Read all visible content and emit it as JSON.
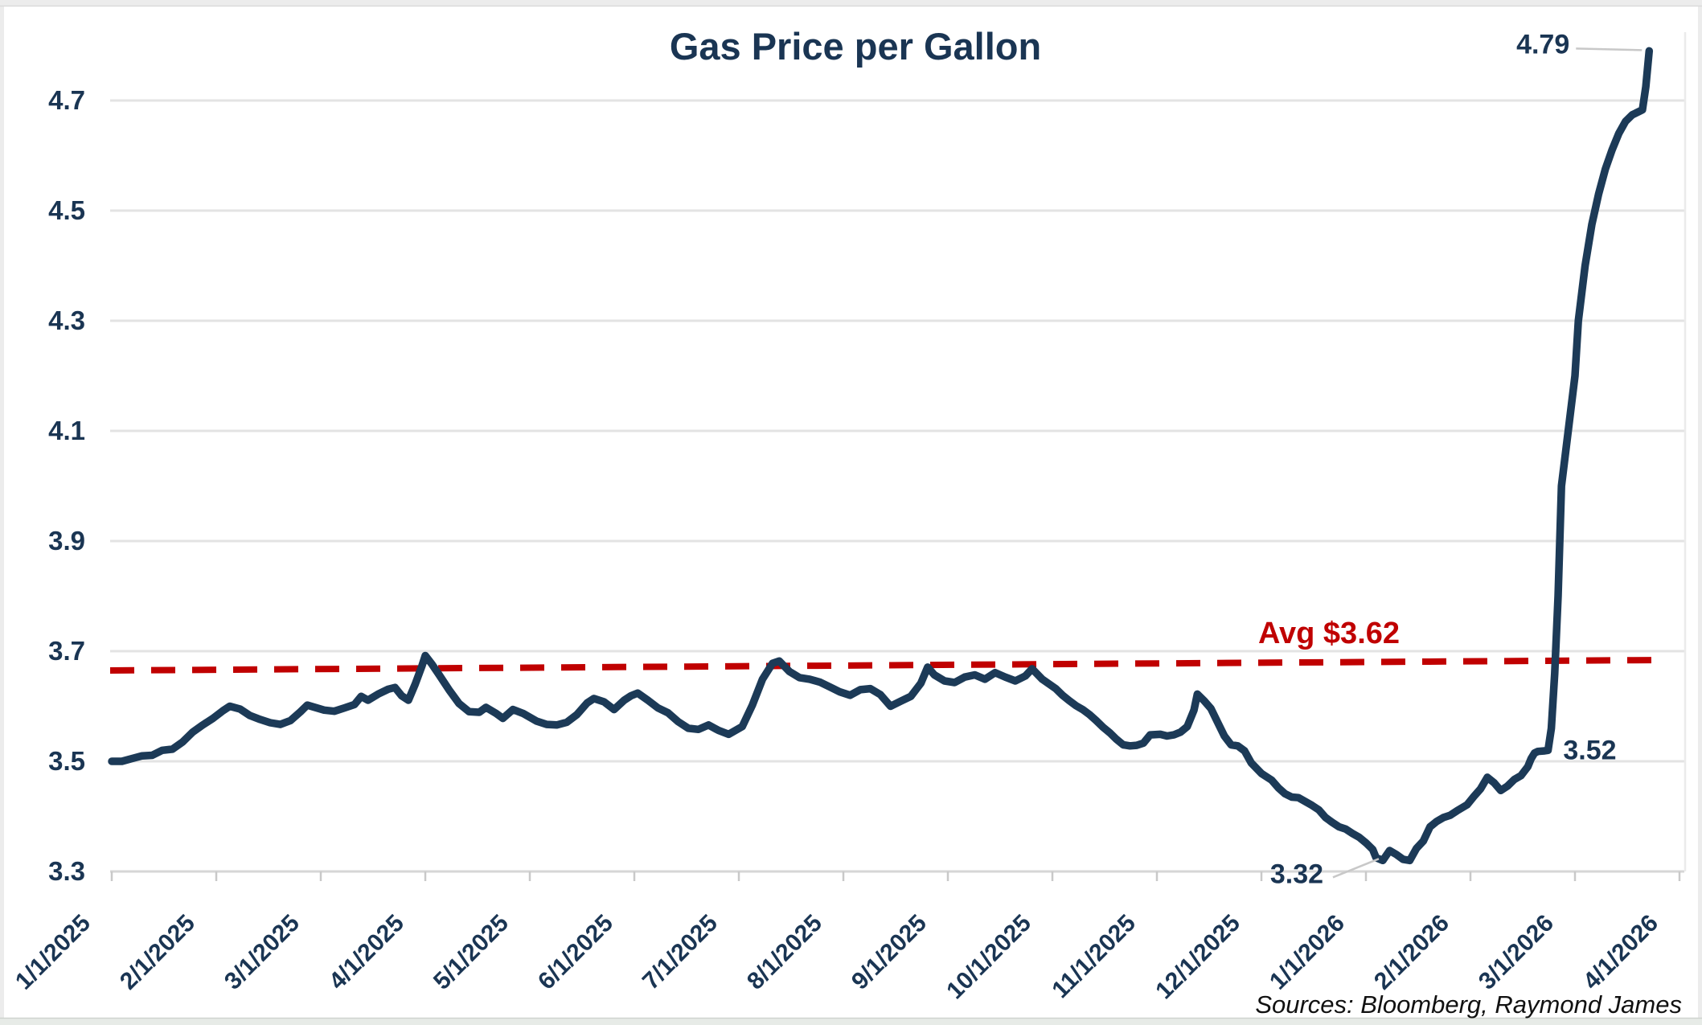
{
  "window": {
    "background": "#ededed",
    "canvas": "#ffffff",
    "frame_color": "#ececec",
    "bottom_strip_color": "#e7ebe7"
  },
  "chart_data": {
    "type": "line",
    "title": "Gas Price per Gallon",
    "source_note": "Sources: Bloomberg, Raymond James",
    "legend": "none",
    "grid": "horizontal",
    "colors": {
      "line": "#1c3a57",
      "text": "#1a3553",
      "avg": "#c00000",
      "grid": "#e3e3e3",
      "axis": "#d6d6d6",
      "tick": "#c9c9c9",
      "leader": "#c8c8c8"
    },
    "y_axis": {
      "min": 3.3,
      "max": 4.8,
      "tick_step": 0.2,
      "ticks": [
        3.3,
        3.5,
        3.7,
        3.9,
        4.1,
        4.3,
        4.5,
        4.7
      ],
      "tick_labels": [
        "3.3",
        "3.5",
        "3.7",
        "3.9",
        "4.1",
        "4.3",
        "4.5",
        "4.7"
      ]
    },
    "x_axis": {
      "tick_labels": [
        "1/1/2025",
        "2/1/2025",
        "3/1/2025",
        "4/1/2025",
        "5/1/2025",
        "6/1/2025",
        "7/1/2025",
        "8/1/2025",
        "9/1/2025",
        "10/1/2025",
        "11/1/2025",
        "12/1/2025",
        "1/1/2026",
        "2/1/2026",
        "3/1/2026",
        "4/1/2026"
      ]
    },
    "avg_line": {
      "label": "Avg $3.62",
      "value": 3.62,
      "draw_start_value": 3.665,
      "draw_end_value": 3.684,
      "style": "dashed"
    },
    "annotations": [
      {
        "text": "4.79",
        "date": "2026-03-23",
        "value": 4.79
      },
      {
        "text": "3.52",
        "date": "2026-02-24",
        "value": 3.52
      },
      {
        "text": "3.32",
        "date": "2026-01-06",
        "value": 3.32
      }
    ],
    "series": [
      {
        "name": "Gas Price per Gallon",
        "points": [
          [
            "2025-01-01",
            3.5
          ],
          [
            "2025-01-04",
            3.5
          ],
          [
            "2025-01-07",
            3.505
          ],
          [
            "2025-01-10",
            3.51
          ],
          [
            "2025-01-13",
            3.511
          ],
          [
            "2025-01-16",
            3.52
          ],
          [
            "2025-01-19",
            3.522
          ],
          [
            "2025-01-22",
            3.535
          ],
          [
            "2025-01-25",
            3.553
          ],
          [
            "2025-01-28",
            3.566
          ],
          [
            "2025-01-31",
            3.578
          ],
          [
            "2025-02-03",
            3.592
          ],
          [
            "2025-02-05",
            3.6
          ],
          [
            "2025-02-08",
            3.595
          ],
          [
            "2025-02-11",
            3.583
          ],
          [
            "2025-02-14",
            3.576
          ],
          [
            "2025-02-17",
            3.57
          ],
          [
            "2025-02-20",
            3.567
          ],
          [
            "2025-02-23",
            3.574
          ],
          [
            "2025-02-26",
            3.59
          ],
          [
            "2025-02-28",
            3.602
          ],
          [
            "2025-03-02",
            3.593
          ],
          [
            "2025-03-05",
            3.591
          ],
          [
            "2025-03-08",
            3.597
          ],
          [
            "2025-03-11",
            3.603
          ],
          [
            "2025-03-13",
            3.618
          ],
          [
            "2025-03-15",
            3.611
          ],
          [
            "2025-03-18",
            3.622
          ],
          [
            "2025-03-21",
            3.631
          ],
          [
            "2025-03-23",
            3.634
          ],
          [
            "2025-03-25",
            3.619
          ],
          [
            "2025-03-27",
            3.611
          ],
          [
            "2025-03-29",
            3.64
          ],
          [
            "2025-03-31",
            3.673
          ],
          [
            "2025-04-01",
            3.692
          ],
          [
            "2025-04-03",
            3.676
          ],
          [
            "2025-04-05",
            3.658
          ],
          [
            "2025-04-08",
            3.63
          ],
          [
            "2025-04-11",
            3.605
          ],
          [
            "2025-04-14",
            3.59
          ],
          [
            "2025-04-17",
            3.589
          ],
          [
            "2025-04-19",
            3.598
          ],
          [
            "2025-04-22",
            3.587
          ],
          [
            "2025-04-24",
            3.578
          ],
          [
            "2025-04-27",
            3.594
          ],
          [
            "2025-04-30",
            3.587
          ],
          [
            "2025-05-03",
            3.573
          ],
          [
            "2025-05-06",
            3.567
          ],
          [
            "2025-05-09",
            3.566
          ],
          [
            "2025-05-12",
            3.571
          ],
          [
            "2025-05-15",
            3.585
          ],
          [
            "2025-05-18",
            3.606
          ],
          [
            "2025-05-20",
            3.614
          ],
          [
            "2025-05-23",
            3.608
          ],
          [
            "2025-05-26",
            3.594
          ],
          [
            "2025-05-29",
            3.611
          ],
          [
            "2025-05-31",
            3.619
          ],
          [
            "2025-06-02",
            3.624
          ],
          [
            "2025-06-05",
            3.611
          ],
          [
            "2025-06-08",
            3.597
          ],
          [
            "2025-06-11",
            3.588
          ],
          [
            "2025-06-14",
            3.572
          ],
          [
            "2025-06-17",
            3.56
          ],
          [
            "2025-06-20",
            3.558
          ],
          [
            "2025-06-23",
            3.566
          ],
          [
            "2025-06-26",
            3.556
          ],
          [
            "2025-06-29",
            3.549
          ],
          [
            "2025-07-02",
            3.563
          ],
          [
            "2025-07-05",
            3.602
          ],
          [
            "2025-07-08",
            3.649
          ],
          [
            "2025-07-11",
            3.678
          ],
          [
            "2025-07-13",
            3.682
          ],
          [
            "2025-07-16",
            3.663
          ],
          [
            "2025-07-19",
            3.652
          ],
          [
            "2025-07-22",
            3.649
          ],
          [
            "2025-07-25",
            3.644
          ],
          [
            "2025-07-28",
            3.635
          ],
          [
            "2025-07-31",
            3.626
          ],
          [
            "2025-08-03",
            3.62
          ],
          [
            "2025-08-06",
            3.63
          ],
          [
            "2025-08-09",
            3.632
          ],
          [
            "2025-08-12",
            3.621
          ],
          [
            "2025-08-15",
            3.6
          ],
          [
            "2025-08-18",
            3.609
          ],
          [
            "2025-08-21",
            3.618
          ],
          [
            "2025-08-24",
            3.642
          ],
          [
            "2025-08-26",
            3.671
          ],
          [
            "2025-08-28",
            3.657
          ],
          [
            "2025-08-31",
            3.646
          ],
          [
            "2025-09-03",
            3.643
          ],
          [
            "2025-09-06",
            3.653
          ],
          [
            "2025-09-09",
            3.657
          ],
          [
            "2025-09-12",
            3.649
          ],
          [
            "2025-09-15",
            3.661
          ],
          [
            "2025-09-18",
            3.653
          ],
          [
            "2025-09-21",
            3.646
          ],
          [
            "2025-09-24",
            3.655
          ],
          [
            "2025-09-26",
            3.668
          ],
          [
            "2025-09-29",
            3.649
          ],
          [
            "2025-10-02",
            3.632
          ],
          [
            "2025-10-04",
            3.62
          ],
          [
            "2025-10-06",
            3.61
          ],
          [
            "2025-10-08",
            3.601
          ],
          [
            "2025-10-10",
            3.594
          ],
          [
            "2025-10-12",
            3.585
          ],
          [
            "2025-10-14",
            3.574
          ],
          [
            "2025-10-16",
            3.562
          ],
          [
            "2025-10-18",
            3.552
          ],
          [
            "2025-10-20",
            3.54
          ],
          [
            "2025-10-22",
            3.53
          ],
          [
            "2025-10-24",
            3.528
          ],
          [
            "2025-10-26",
            3.529
          ],
          [
            "2025-10-28",
            3.533
          ],
          [
            "2025-10-30",
            3.548
          ],
          [
            "2025-11-02",
            3.549
          ],
          [
            "2025-11-04",
            3.546
          ],
          [
            "2025-11-06",
            3.548
          ],
          [
            "2025-11-08",
            3.553
          ],
          [
            "2025-11-10",
            3.563
          ],
          [
            "2025-11-11",
            3.578
          ],
          [
            "2025-11-12",
            3.593
          ],
          [
            "2025-11-13",
            3.622
          ],
          [
            "2025-11-15",
            3.61
          ],
          [
            "2025-11-17",
            3.596
          ],
          [
            "2025-11-19",
            3.571
          ],
          [
            "2025-11-21",
            3.546
          ],
          [
            "2025-11-23",
            3.53
          ],
          [
            "2025-11-25",
            3.528
          ],
          [
            "2025-11-27",
            3.519
          ],
          [
            "2025-11-29",
            3.497
          ],
          [
            "2025-12-01",
            3.478
          ],
          [
            "2025-12-04",
            3.466
          ],
          [
            "2025-12-06",
            3.452
          ],
          [
            "2025-12-08",
            3.441
          ],
          [
            "2025-12-10",
            3.435
          ],
          [
            "2025-12-12",
            3.434
          ],
          [
            "2025-12-14",
            3.427
          ],
          [
            "2025-12-16",
            3.42
          ],
          [
            "2025-12-18",
            3.412
          ],
          [
            "2025-12-20",
            3.398
          ],
          [
            "2025-12-22",
            3.389
          ],
          [
            "2025-12-24",
            3.381
          ],
          [
            "2025-12-26",
            3.377
          ],
          [
            "2025-12-28",
            3.369
          ],
          [
            "2025-12-30",
            3.362
          ],
          [
            "2026-01-01",
            3.352
          ],
          [
            "2026-01-03",
            3.34
          ],
          [
            "2026-01-04",
            3.325
          ],
          [
            "2026-01-06",
            3.32
          ],
          [
            "2026-01-08",
            3.338
          ],
          [
            "2026-01-10",
            3.331
          ],
          [
            "2026-01-12",
            3.322
          ],
          [
            "2026-01-14",
            3.32
          ],
          [
            "2026-01-16",
            3.342
          ],
          [
            "2026-01-18",
            3.355
          ],
          [
            "2026-01-20",
            3.381
          ],
          [
            "2026-01-22",
            3.391
          ],
          [
            "2026-01-24",
            3.398
          ],
          [
            "2026-01-26",
            3.402
          ],
          [
            "2026-01-28",
            3.41
          ],
          [
            "2026-01-31",
            3.421
          ],
          [
            "2026-02-02",
            3.436
          ],
          [
            "2026-02-04",
            3.45
          ],
          [
            "2026-02-06",
            3.471
          ],
          [
            "2026-02-08",
            3.461
          ],
          [
            "2026-02-10",
            3.447
          ],
          [
            "2026-02-12",
            3.455
          ],
          [
            "2026-02-14",
            3.467
          ],
          [
            "2026-02-16",
            3.474
          ],
          [
            "2026-02-18",
            3.49
          ],
          [
            "2026-02-19",
            3.505
          ],
          [
            "2026-02-20",
            3.515
          ],
          [
            "2026-02-21",
            3.518
          ],
          [
            "2026-02-23",
            3.519
          ],
          [
            "2026-02-24",
            3.52
          ],
          [
            "2026-02-25",
            3.56
          ],
          [
            "2026-02-26",
            3.66
          ],
          [
            "2026-02-27",
            3.8
          ],
          [
            "2026-02-28",
            4.0
          ],
          [
            "2026-03-01",
            4.2
          ],
          [
            "2026-03-02",
            4.3
          ],
          [
            "2026-03-04",
            4.4
          ],
          [
            "2026-03-06",
            4.475
          ],
          [
            "2026-03-08",
            4.53
          ],
          [
            "2026-03-10",
            4.575
          ],
          [
            "2026-03-12",
            4.61
          ],
          [
            "2026-03-14",
            4.64
          ],
          [
            "2026-03-16",
            4.662
          ],
          [
            "2026-03-18",
            4.674
          ],
          [
            "2026-03-20",
            4.68
          ],
          [
            "2026-03-21",
            4.683
          ],
          [
            "2026-03-22",
            4.725
          ],
          [
            "2026-03-23",
            4.79
          ]
        ]
      }
    ]
  }
}
